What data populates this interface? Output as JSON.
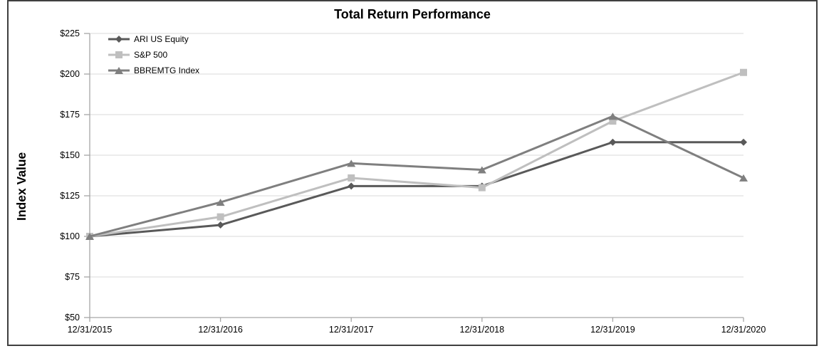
{
  "frame": {
    "border_color": "#3f3f3f",
    "background": "#ffffff"
  },
  "chart_data": {
    "type": "line",
    "title": "Total Return Performance",
    "xlabel": "",
    "ylabel": "Index Value",
    "categories": [
      "12/31/2015",
      "12/31/2016",
      "12/31/2017",
      "12/31/2018",
      "12/31/2019",
      "12/31/2020"
    ],
    "series": [
      {
        "name": "ARI US Equity",
        "marker": "diamond",
        "color": "#595959",
        "values": [
          100,
          107,
          131,
          131,
          158,
          158
        ]
      },
      {
        "name": "S&P 500",
        "marker": "square",
        "color": "#bfbfbf",
        "values": [
          100,
          112,
          136,
          130,
          171,
          201
        ]
      },
      {
        "name": "BBREMTG Index",
        "marker": "triangle",
        "color": "#7f7f7f",
        "values": [
          100,
          121,
          145,
          141,
          174,
          136
        ]
      }
    ],
    "ylim": [
      50,
      225
    ],
    "y_tick_step": 25,
    "y_ticks": [
      "$225",
      "$200",
      "$175",
      "$150",
      "$125",
      "$100",
      "$75",
      "$50"
    ],
    "y_tick_values": [
      225,
      200,
      175,
      150,
      125,
      100,
      75,
      50
    ],
    "grid": true,
    "gridlines": "horizontal",
    "legend_position": "top-left-inside",
    "colors": {
      "gridline": "#d9d9d9",
      "axis": "#a6a6a6",
      "text": "#000000"
    }
  }
}
